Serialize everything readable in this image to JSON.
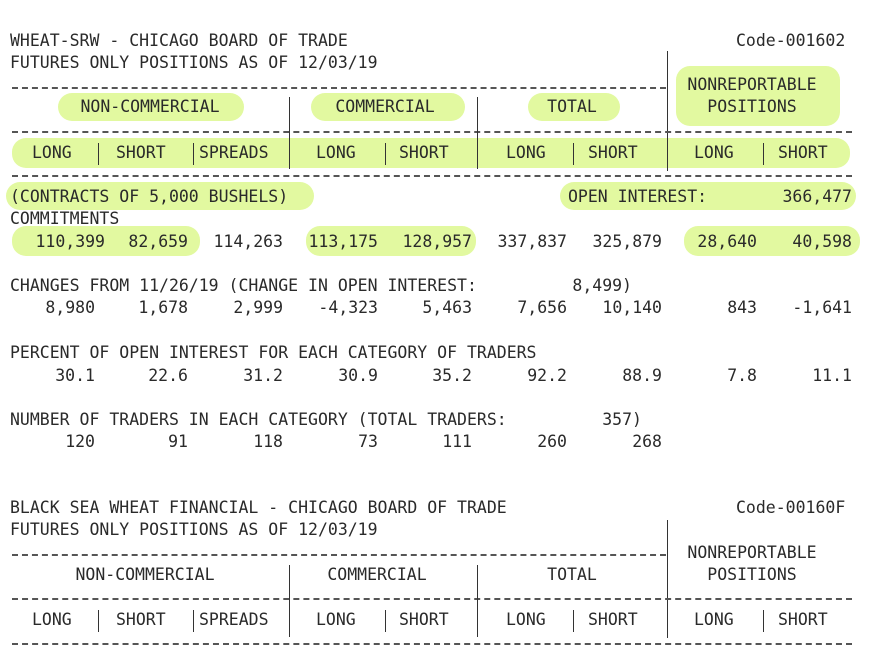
{
  "report1": {
    "title": "WHEAT-SRW - CHICAGO BOARD OF TRADE",
    "code": "Code-001602",
    "subtitle": "FUTURES ONLY POSITIONS AS OF 12/03/19",
    "groups": [
      "NON-COMMERCIAL",
      "COMMERCIAL",
      "TOTAL"
    ],
    "nonrep_line1": "NONREPORTABLE",
    "nonrep_line2": "POSITIONS",
    "columns": [
      "LONG",
      "SHORT",
      "SPREADS",
      "LONG",
      "SHORT",
      "LONG",
      "SHORT",
      "LONG",
      "SHORT"
    ],
    "contracts_note": "(CONTRACTS OF 5,000 BUSHELS)",
    "open_interest_label": "OPEN INTEREST:",
    "open_interest_value": "366,477",
    "commitments_label": "COMMITMENTS",
    "commitments": [
      "110,399",
      "82,659",
      "114,263",
      "113,175",
      "128,957",
      "337,837",
      "325,879",
      "28,640",
      "40,598"
    ],
    "changes_label": "CHANGES FROM 11/26/19 (CHANGE IN OPEN INTEREST:",
    "changes_oi_value": "8,499)",
    "changes": [
      "8,980",
      "1,678",
      "2,999",
      "-4,323",
      "5,463",
      "7,656",
      "10,140",
      "843",
      "-1,641"
    ],
    "percent_label": "PERCENT OF OPEN INTEREST FOR EACH CATEGORY OF TRADERS",
    "percent": [
      "30.1",
      "22.6",
      "31.2",
      "30.9",
      "35.2",
      "92.2",
      "88.9",
      "7.8",
      "11.1"
    ],
    "traders_label": "NUMBER OF TRADERS IN EACH CATEGORY (TOTAL TRADERS:",
    "traders_total": "357)",
    "traders": [
      "120",
      "91",
      "118",
      "73",
      "111",
      "260",
      "268"
    ]
  },
  "report2": {
    "title": "BLACK SEA WHEAT FINANCIAL - CHICAGO BOARD OF TRADE",
    "code": "Code-00160F",
    "subtitle": "FUTURES ONLY POSITIONS AS OF 12/03/19",
    "groups": [
      "NON-COMMERCIAL",
      "COMMERCIAL",
      "TOTAL"
    ],
    "nonrep_line1": "NONREPORTABLE",
    "nonrep_line2": "POSITIONS",
    "columns": [
      "LONG",
      "SHORT",
      "SPREADS",
      "LONG",
      "SHORT",
      "LONG",
      "SHORT",
      "LONG",
      "SHORT"
    ]
  },
  "colors": {
    "highlight": "#e2f9a0",
    "text": "#2a2a2a"
  }
}
